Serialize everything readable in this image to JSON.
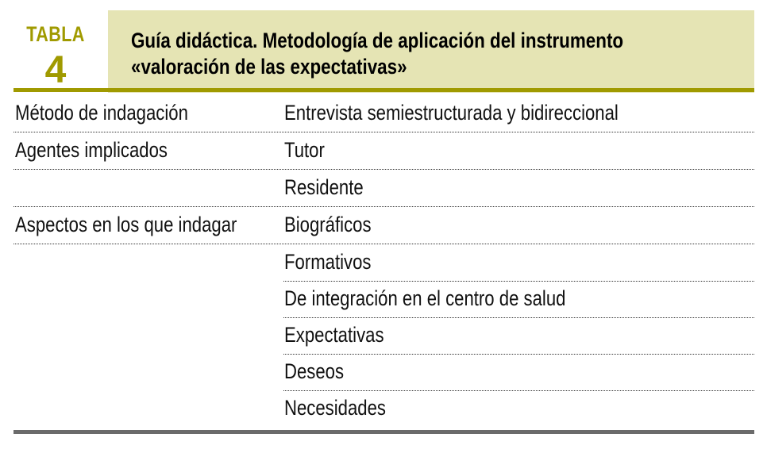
{
  "table": {
    "label": "TABLA",
    "number": "4",
    "title_line1": "Guía didáctica. Metodología de aplicación del instrumento",
    "title_line2": "«valoración de las expectativas»",
    "rows": [
      {
        "left": "Método de indagación",
        "right": "Entrevista semiestructurada y bidireccional"
      },
      {
        "left": "Agentes implicados",
        "right": "Tutor"
      },
      {
        "left": "",
        "right": "Residente"
      },
      {
        "left": "Aspectos en los que indagar",
        "right": "Biográficos"
      },
      {
        "left": "",
        "right": "Formativos"
      },
      {
        "left": "",
        "right": "De integración en el centro de salud"
      },
      {
        "left": "",
        "right": "Expectativas"
      },
      {
        "left": "",
        "right": "Deseos"
      },
      {
        "left": "",
        "right": "Necesidades"
      }
    ]
  },
  "colors": {
    "accent": "#a09a00",
    "header_bg": "#e5e4b4",
    "bottom_rule": "#6b6b6b"
  }
}
